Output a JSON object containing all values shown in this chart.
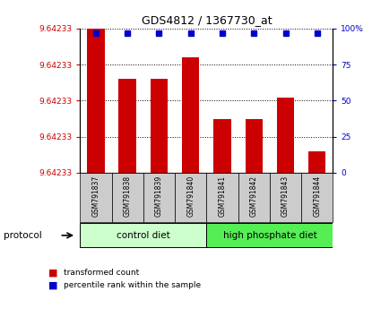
{
  "title": "GDS4812 / 1367730_at",
  "samples": [
    "GSM791837",
    "GSM791838",
    "GSM791839",
    "GSM791840",
    "GSM791841",
    "GSM791842",
    "GSM791843",
    "GSM791844"
  ],
  "transformed_counts": [
    100,
    65,
    65,
    80,
    37,
    37,
    52,
    15
  ],
  "percentile_ranks": [
    97,
    97,
    97,
    97,
    97,
    97,
    97,
    97
  ],
  "yticks_left_labels": [
    "9.64233",
    "9.64233",
    "9.64233",
    "9.64233",
    "9.64233"
  ],
  "yticks_right_labels": [
    "0",
    "25",
    "50",
    "75",
    "100%"
  ],
  "yticks_positions": [
    0,
    25,
    50,
    75,
    100
  ],
  "bar_color": "#cc0000",
  "dot_color": "#0000cc",
  "left_tick_color": "#cc0000",
  "right_tick_color": "#0000cc",
  "group1_label": "control diet",
  "group2_label": "high phosphate diet",
  "group1_color": "#ccffcc",
  "group2_color": "#55ee55",
  "protocol_label": "protocol",
  "legend_bar_label": "transformed count",
  "legend_dot_label": "percentile rank within the sample",
  "sample_box_color": "#cccccc",
  "spine_color": "#000000",
  "grid_color": "#000000"
}
